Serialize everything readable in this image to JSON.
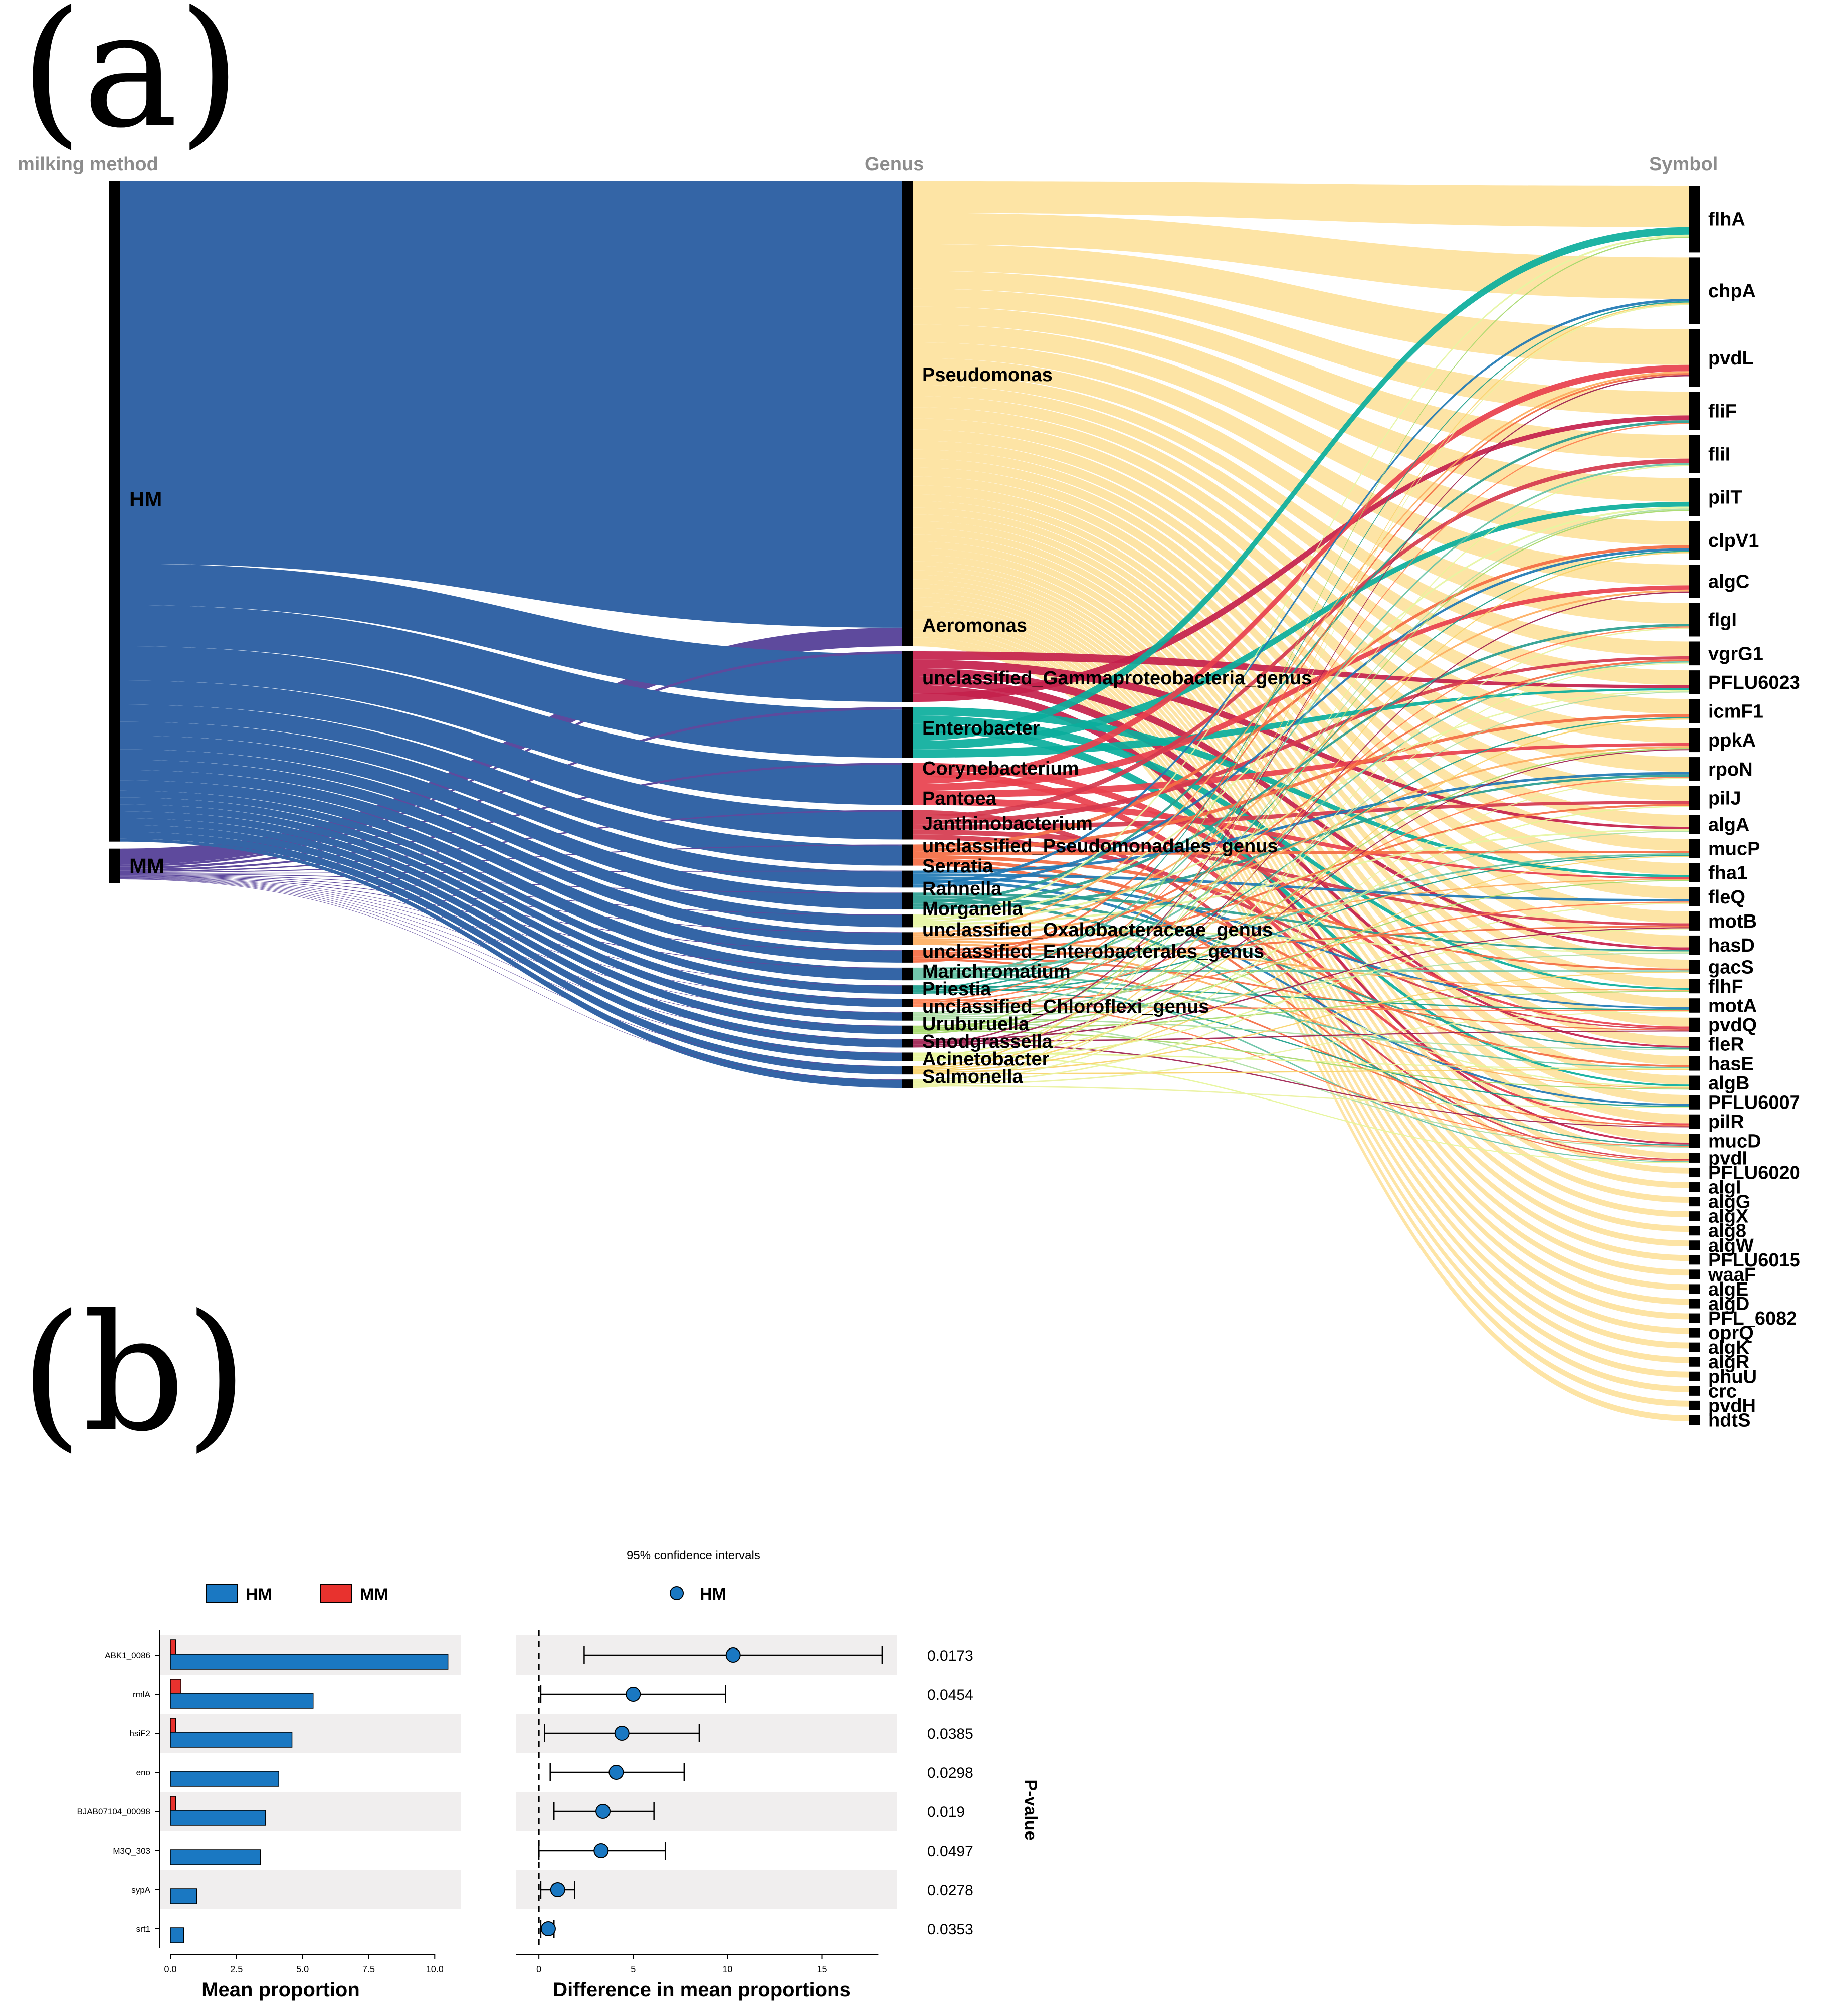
{
  "panels": {
    "a": "(a)",
    "b": "(b)"
  },
  "chart_data": [
    {
      "type": "sankey",
      "columns": [
        "milking method",
        "Genus",
        "Symbol"
      ],
      "methods": [
        {
          "name": "HM",
          "share": 0.95,
          "color": "#3465a6"
        },
        {
          "name": "MM",
          "share": 0.05,
          "color": "#5e4a9d"
        }
      ],
      "genera": [
        {
          "name": "Pseudomonas",
          "weight": 110,
          "color": "#fde3a0"
        },
        {
          "name": "Aeromonas",
          "weight": 12,
          "color": "#c4214c"
        },
        {
          "name": "unclassified_Gammaproteobacteria_genus",
          "weight": 12,
          "color": "#0bae9c"
        },
        {
          "name": "Enterobacter",
          "weight": 10,
          "color": "#e8404d"
        },
        {
          "name": "Corynebacterium",
          "weight": 7,
          "color": "#d53a4e"
        },
        {
          "name": "Pantoea",
          "weight": 5,
          "color": "#f46d43"
        },
        {
          "name": "Janthinobacterium",
          "weight": 4,
          "color": "#1f78b4"
        },
        {
          "name": "unclassified_Pseudomonadales_genus",
          "weight": 4,
          "color": "#2a9d8f"
        },
        {
          "name": "Serratia",
          "weight": 3,
          "color": "#e6f5a2"
        },
        {
          "name": "Rahnella",
          "weight": 3,
          "color": "#fdae61"
        },
        {
          "name": "Morganella",
          "weight": 3,
          "color": "#f46d43"
        },
        {
          "name": "unclassified_Oxalobacteraceae_genus",
          "weight": 3,
          "color": "#66c2a5"
        },
        {
          "name": "unclassified_Enterobacterales_genus",
          "weight": 2,
          "color": "#1a9d8a"
        },
        {
          "name": "Marichromatium",
          "weight": 2,
          "color": "#ff7f50"
        },
        {
          "name": "Priestia",
          "weight": 2,
          "color": "#abdda4"
        },
        {
          "name": "unclassified_Chloroflexi_genus",
          "weight": 2,
          "color": "#a6d96a"
        },
        {
          "name": "Uruburuella",
          "weight": 2,
          "color": "#9e1f4f"
        },
        {
          "name": "Snodgrassella",
          "weight": 2,
          "color": "#e6f598"
        },
        {
          "name": "Acinetobacter",
          "weight": 2,
          "color": "#f8d26a"
        },
        {
          "name": "Salmonella",
          "weight": 2,
          "color": "#eaf2a0"
        }
      ],
      "symbols": [
        {
          "name": "flhA",
          "weight": 14
        },
        {
          "name": "chpA",
          "weight": 14
        },
        {
          "name": "pvdL",
          "weight": 12
        },
        {
          "name": "fliF",
          "weight": 8
        },
        {
          "name": "fliI",
          "weight": 8
        },
        {
          "name": "pilT",
          "weight": 8
        },
        {
          "name": "clpV1",
          "weight": 8
        },
        {
          "name": "algC",
          "weight": 7
        },
        {
          "name": "flgI",
          "weight": 7
        },
        {
          "name": "vgrG1",
          "weight": 5
        },
        {
          "name": "PFLU6023",
          "weight": 5
        },
        {
          "name": "icmF1",
          "weight": 5
        },
        {
          "name": "ppkA",
          "weight": 5
        },
        {
          "name": "rpoN",
          "weight": 5
        },
        {
          "name": "pilJ",
          "weight": 5
        },
        {
          "name": "algA",
          "weight": 4
        },
        {
          "name": "mucP",
          "weight": 4
        },
        {
          "name": "fha1",
          "weight": 4
        },
        {
          "name": "fleQ",
          "weight": 4
        },
        {
          "name": "motB",
          "weight": 4
        },
        {
          "name": "hasD",
          "weight": 4
        },
        {
          "name": "gacS",
          "weight": 3
        },
        {
          "name": "flhF",
          "weight": 3
        },
        {
          "name": "motA",
          "weight": 3
        },
        {
          "name": "pvdQ",
          "weight": 3
        },
        {
          "name": "fleR",
          "weight": 3
        },
        {
          "name": "hasE",
          "weight": 3
        },
        {
          "name": "algB",
          "weight": 3
        },
        {
          "name": "PFLU6007",
          "weight": 3
        },
        {
          "name": "pilR",
          "weight": 3
        },
        {
          "name": "mucD",
          "weight": 3
        },
        {
          "name": "pvdI",
          "weight": 2
        },
        {
          "name": "PFLU6020",
          "weight": 2
        },
        {
          "name": "algI",
          "weight": 2
        },
        {
          "name": "algG",
          "weight": 2
        },
        {
          "name": "algX",
          "weight": 2
        },
        {
          "name": "alg8",
          "weight": 2
        },
        {
          "name": "algW",
          "weight": 2
        },
        {
          "name": "PFLU6015",
          "weight": 2
        },
        {
          "name": "waaF",
          "weight": 2
        },
        {
          "name": "algE",
          "weight": 2
        },
        {
          "name": "algD",
          "weight": 2
        },
        {
          "name": "PFL_6082",
          "weight": 2
        },
        {
          "name": "oprQ",
          "weight": 2
        },
        {
          "name": "algK",
          "weight": 2
        },
        {
          "name": "algR",
          "weight": 2
        },
        {
          "name": "phuU",
          "weight": 2
        },
        {
          "name": "crc",
          "weight": 2
        },
        {
          "name": "pvdH",
          "weight": 2
        },
        {
          "name": "hdtS",
          "weight": 2
        }
      ]
    },
    {
      "type": "extended_error_bar",
      "legend": [
        "HM",
        "MM"
      ],
      "colors": {
        "HM": "#1a78c2",
        "MM": "#e8322e"
      },
      "ci_title": "95% confidence intervals",
      "ci_legend": "HM",
      "xlabel_left": "Mean proportion",
      "xlabel_right": "Difference in mean proportions",
      "ylabel_right": "P-value",
      "left_ticks": [
        "0.0",
        "2.5",
        "5.0",
        "7.5",
        "10.0"
      ],
      "left_xlim": [
        0,
        11
      ],
      "right_ticks": [
        "0",
        "5",
        "10",
        "15"
      ],
      "right_xlim": [
        -1.2,
        19
      ],
      "features": [
        {
          "name": "ABK1_0086",
          "hm": 10.5,
          "mm": 0.2,
          "diff": 10.3,
          "lo": 2.4,
          "hi": 18.2,
          "p": "0.0173"
        },
        {
          "name": "rmlA",
          "hm": 5.4,
          "mm": 0.4,
          "diff": 5.0,
          "lo": 0.1,
          "hi": 9.9,
          "p": "0.0454"
        },
        {
          "name": "hsiF2",
          "hm": 4.6,
          "mm": 0.2,
          "diff": 4.4,
          "lo": 0.3,
          "hi": 8.5,
          "p": "0.0385"
        },
        {
          "name": "eno",
          "hm": 4.1,
          "mm": 0.0,
          "diff": 4.1,
          "lo": 0.6,
          "hi": 7.7,
          "p": "0.0298"
        },
        {
          "name": "BJAB07104_00098",
          "hm": 3.6,
          "mm": 0.2,
          "diff": 3.4,
          "lo": 0.8,
          "hi": 6.1,
          "p": "0.019"
        },
        {
          "name": "M3Q_303",
          "hm": 3.4,
          "mm": 0.0,
          "diff": 3.3,
          "lo": 0.0,
          "hi": 6.7,
          "p": "0.0497"
        },
        {
          "name": "sypA",
          "hm": 1.0,
          "mm": 0.0,
          "diff": 1.0,
          "lo": 0.1,
          "hi": 1.9,
          "p": "0.0278"
        },
        {
          "name": "srt1",
          "hm": 0.5,
          "mm": 0.0,
          "diff": 0.5,
          "lo": 0.1,
          "hi": 0.8,
          "p": "0.0353"
        }
      ]
    }
  ]
}
